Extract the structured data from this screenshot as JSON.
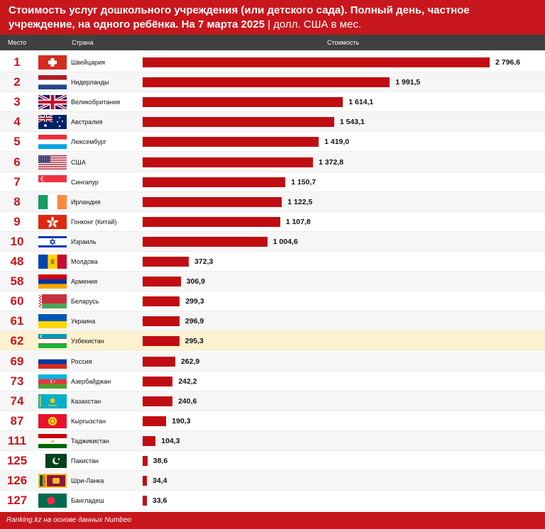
{
  "title": {
    "main": "Стоимость услуг дошкольного учреждения (или детского сада). Полный день, частное учреждение, на одного ребёнка. На 7 марта 2025",
    "separator": "|",
    "unit": "долл. США в мес."
  },
  "columns": {
    "rank": "Место",
    "country": "Страна",
    "cost": "Стоимость"
  },
  "footer": "Ranking.kz на основе данных Numbeo",
  "highlight_color": "#fdf2cf",
  "bar_color": "#c00d12",
  "accent_color": "#c8161d",
  "chart_data": {
    "type": "bar",
    "orientation": "horizontal",
    "highlighted_category": "Узбекистан",
    "xlim": [
      0,
      2796.6
    ],
    "rows": [
      {
        "rank": "1",
        "country": "Швейцария",
        "flag": "ch-flag-icon",
        "value": 2796.6,
        "label": "2 796,6"
      },
      {
        "rank": "2",
        "country": "Нидерланды",
        "flag": "nl-flag-icon",
        "value": 1991.5,
        "label": "1 991,5"
      },
      {
        "rank": "3",
        "country": "Великобритания",
        "flag": "gb-flag-icon",
        "value": 1614.1,
        "label": "1 614,1"
      },
      {
        "rank": "4",
        "country": "Австралия",
        "flag": "au-flag-icon",
        "value": 1543.1,
        "label": "1 543,1"
      },
      {
        "rank": "5",
        "country": "Люксембург",
        "flag": "lu-flag-icon",
        "value": 1419.0,
        "label": "1 419,0"
      },
      {
        "rank": "6",
        "country": "США",
        "flag": "us-flag-icon",
        "value": 1372.8,
        "label": "1 372,8"
      },
      {
        "rank": "7",
        "country": "Сингапур",
        "flag": "sg-flag-icon",
        "value": 1150.7,
        "label": "1 150,7"
      },
      {
        "rank": "8",
        "country": "Ирландия",
        "flag": "ie-flag-icon",
        "value": 1122.5,
        "label": "1 122,5"
      },
      {
        "rank": "9",
        "country": "Гонконг (Китай)",
        "flag": "hk-flag-icon",
        "value": 1107.8,
        "label": "1 107,8"
      },
      {
        "rank": "10",
        "country": "Израиль",
        "flag": "il-flag-icon",
        "value": 1004.6,
        "label": "1 004,6"
      },
      {
        "rank": "48",
        "country": "Молдова",
        "flag": "md-flag-icon",
        "value": 372.3,
        "label": "372,3"
      },
      {
        "rank": "58",
        "country": "Армения",
        "flag": "am-flag-icon",
        "value": 306.9,
        "label": "306,9"
      },
      {
        "rank": "60",
        "country": "Беларусь",
        "flag": "by-flag-icon",
        "value": 299.3,
        "label": "299,3"
      },
      {
        "rank": "61",
        "country": "Украина",
        "flag": "ua-flag-icon",
        "value": 296.9,
        "label": "296,9"
      },
      {
        "rank": "62",
        "country": "Узбекистан",
        "flag": "uz-flag-icon",
        "value": 295.3,
        "label": "295,3"
      },
      {
        "rank": "69",
        "country": "Россия",
        "flag": "ru-flag-icon",
        "value": 262.9,
        "label": "262,9"
      },
      {
        "rank": "73",
        "country": "Азербайджан",
        "flag": "az-flag-icon",
        "value": 242.2,
        "label": "242,2"
      },
      {
        "rank": "74",
        "country": "Казахстан",
        "flag": "kz-flag-icon",
        "value": 240.6,
        "label": "240,6"
      },
      {
        "rank": "87",
        "country": "Кыргызстан",
        "flag": "kg-flag-icon",
        "value": 190.3,
        "label": "190,3"
      },
      {
        "rank": "111",
        "country": "Таджикистан",
        "flag": "tj-flag-icon",
        "value": 104.3,
        "label": "104,3"
      },
      {
        "rank": "125",
        "country": "Пакистан",
        "flag": "pk-flag-icon",
        "value": 38.6,
        "label": "38,6"
      },
      {
        "rank": "126",
        "country": "Шри-Ланка",
        "flag": "lk-flag-icon",
        "value": 34.4,
        "label": "34,4"
      },
      {
        "rank": "127",
        "country": "Бангладеш",
        "flag": "bd-flag-icon",
        "value": 33.6,
        "label": "33,6"
      }
    ]
  }
}
